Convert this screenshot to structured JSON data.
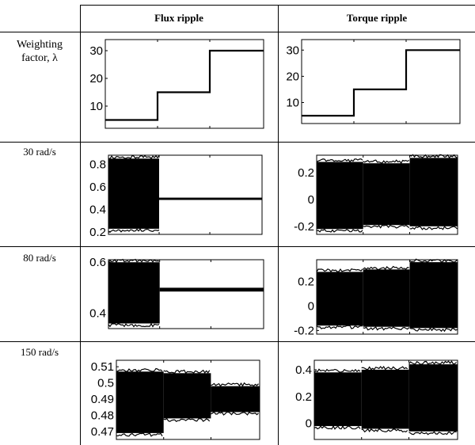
{
  "table": {
    "col_flux": "Flux ripple",
    "col_torque": "Torque ripple",
    "rows": [
      {
        "label_line1": "Weighting",
        "label_line2": "factor, λ"
      },
      {
        "label_line1": "30 rad/s",
        "label_line2": ""
      },
      {
        "label_line1": "80 rad/s",
        "label_line2": ""
      },
      {
        "label_line1": "150 rad/s",
        "label_line2": ""
      }
    ]
  },
  "chart_data": [
    {
      "type": "line",
      "row": "Weighting factor, λ",
      "column": "Flux ripple",
      "x": [
        0,
        0.33,
        0.33,
        0.66,
        0.66,
        1.0
      ],
      "y": [
        5,
        5,
        15,
        15,
        30,
        30
      ],
      "ylim": [
        2,
        34
      ],
      "yticks": [
        "30",
        "20",
        "10"
      ],
      "ytick_values": [
        30,
        20,
        10
      ]
    },
    {
      "type": "line",
      "row": "Weighting factor, λ",
      "column": "Torque ripple",
      "x": [
        0,
        0.33,
        0.33,
        0.66,
        0.66,
        1.0
      ],
      "y": [
        5,
        5,
        15,
        15,
        30,
        30
      ],
      "ylim": [
        2,
        34
      ],
      "yticks": [
        "30",
        "20",
        "10"
      ],
      "ytick_values": [
        30,
        20,
        10
      ]
    },
    {
      "type": "area",
      "row": "30 rad/s",
      "column": "Flux ripple",
      "segments": [
        {
          "x": [
            0,
            0.33
          ],
          "lo": 0.23,
          "hi": 0.85
        },
        {
          "x": [
            0.33,
            1.0
          ],
          "lo": 0.485,
          "hi": 0.505
        }
      ],
      "ylim": [
        0.18,
        0.88
      ],
      "yticks": [
        "0.8",
        "0.6",
        "0.4",
        "0.2"
      ],
      "ytick_values": [
        0.8,
        0.6,
        0.4,
        0.2
      ]
    },
    {
      "type": "area",
      "row": "30 rad/s",
      "column": "Torque ripple",
      "segments": [
        {
          "x": [
            0,
            0.33
          ],
          "lo": -0.22,
          "hi": 0.28
        },
        {
          "x": [
            0.33,
            0.66
          ],
          "lo": -0.19,
          "hi": 0.27
        },
        {
          "x": [
            0.66,
            1.0
          ],
          "lo": -0.2,
          "hi": 0.31
        }
      ],
      "ylim": [
        -0.26,
        0.33
      ],
      "yticks": [
        "0.2",
        "0",
        "-0.2"
      ],
      "ytick_values": [
        0.2,
        0,
        -0.2
      ]
    },
    {
      "type": "area",
      "row": "80 rad/s",
      "column": "Flux ripple",
      "segments": [
        {
          "x": [
            0,
            0.33
          ],
          "lo": 0.36,
          "hi": 0.6
        },
        {
          "x": [
            0.33,
            1.0
          ],
          "lo": 0.485,
          "hi": 0.5
        }
      ],
      "ylim": [
        0.34,
        0.61
      ],
      "yticks": [
        "0.6",
        "0.4"
      ],
      "ytick_values": [
        0.6,
        0.4
      ]
    },
    {
      "type": "area",
      "row": "80 rad/s",
      "column": "Torque ripple",
      "segments": [
        {
          "x": [
            0,
            0.33
          ],
          "lo": -0.16,
          "hi": 0.28
        },
        {
          "x": [
            0.33,
            0.66
          ],
          "lo": -0.17,
          "hi": 0.3
        },
        {
          "x": [
            0.66,
            1.0
          ],
          "lo": -0.18,
          "hi": 0.36
        }
      ],
      "ylim": [
        -0.23,
        0.38
      ],
      "yticks": [
        "0.2",
        "0",
        "-0.2"
      ],
      "ytick_values": [
        0.2,
        0,
        -0.2
      ]
    },
    {
      "type": "area",
      "row": "150 rad/s",
      "column": "Flux ripple",
      "segments": [
        {
          "x": [
            0,
            0.33
          ],
          "lo": 0.469,
          "hi": 0.507
        },
        {
          "x": [
            0.33,
            0.66
          ],
          "lo": 0.478,
          "hi": 0.506
        },
        {
          "x": [
            0.66,
            1.0
          ],
          "lo": 0.482,
          "hi": 0.498
        }
      ],
      "ylim": [
        0.465,
        0.514
      ],
      "yticks": [
        "0.51",
        "0.5",
        "0.49",
        "0.48",
        "0.47"
      ],
      "ytick_values": [
        0.51,
        0.5,
        0.49,
        0.48,
        0.47
      ]
    },
    {
      "type": "area",
      "row": "150 rad/s",
      "column": "Torque ripple",
      "segments": [
        {
          "x": [
            0,
            0.33
          ],
          "lo": -0.02,
          "hi": 0.38
        },
        {
          "x": [
            0.33,
            0.66
          ],
          "lo": -0.04,
          "hi": 0.4
        },
        {
          "x": [
            0.66,
            1.0
          ],
          "lo": -0.06,
          "hi": 0.44
        }
      ],
      "ylim": [
        -0.12,
        0.47
      ],
      "yticks": [
        "0.4",
        "0.2",
        "0"
      ],
      "ytick_values": [
        0.4,
        0.2,
        0
      ]
    }
  ]
}
